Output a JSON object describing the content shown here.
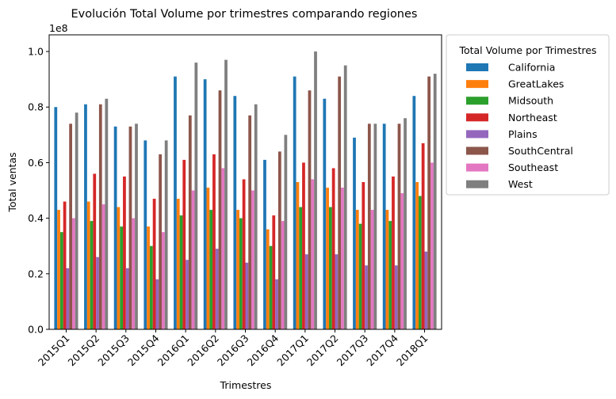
{
  "chart_data": {
    "type": "bar",
    "title": "Evolución Total Volume por trimestres comparando regiones",
    "xlabel": "Trimestres",
    "ylabel": "Total ventas",
    "y_offset_label": "1e8",
    "ylim": [
      0,
      1.06
    ],
    "yticks": [
      "0.0",
      "0.2",
      "0.4",
      "0.6",
      "0.8",
      "1.0"
    ],
    "yunit_multiplier": 100000000,
    "legend_title": "Total Volume por Trimestres",
    "legend_position": "outside-right",
    "grid": false,
    "categories": [
      "2015Q1",
      "2015Q2",
      "2015Q3",
      "2015Q4",
      "2016Q1",
      "2016Q2",
      "2016Q3",
      "2016Q4",
      "2017Q1",
      "2017Q2",
      "2017Q3",
      "2017Q4",
      "2018Q1"
    ],
    "series": [
      {
        "name": "California",
        "color": "#1f77b4",
        "values": [
          0.8,
          0.81,
          0.73,
          0.68,
          0.91,
          0.9,
          0.84,
          0.61,
          0.91,
          0.83,
          0.69,
          0.74,
          0.84
        ]
      },
      {
        "name": "GreatLakes",
        "color": "#ff7f0e",
        "values": [
          0.43,
          0.46,
          0.44,
          0.37,
          0.47,
          0.51,
          0.43,
          0.36,
          0.53,
          0.51,
          0.43,
          0.43,
          0.53
        ]
      },
      {
        "name": "Midsouth",
        "color": "#2ca02c",
        "values": [
          0.35,
          0.39,
          0.37,
          0.3,
          0.41,
          0.43,
          0.4,
          0.3,
          0.44,
          0.44,
          0.38,
          0.39,
          0.48
        ]
      },
      {
        "name": "Northeast",
        "color": "#d62728",
        "values": [
          0.46,
          0.56,
          0.55,
          0.47,
          0.61,
          0.63,
          0.54,
          0.41,
          0.6,
          0.58,
          0.53,
          0.55,
          0.67
        ]
      },
      {
        "name": "Plains",
        "color": "#9467bd",
        "values": [
          0.22,
          0.26,
          0.22,
          0.18,
          0.25,
          0.29,
          0.24,
          0.18,
          0.27,
          0.27,
          0.23,
          0.23,
          0.28
        ]
      },
      {
        "name": "SouthCentral",
        "color": "#8c564b",
        "values": [
          0.74,
          0.81,
          0.73,
          0.63,
          0.77,
          0.86,
          0.77,
          0.64,
          0.86,
          0.91,
          0.74,
          0.74,
          0.91
        ]
      },
      {
        "name": "Southeast",
        "color": "#e377c2",
        "values": [
          0.4,
          0.45,
          0.4,
          0.35,
          0.5,
          0.58,
          0.5,
          0.39,
          0.54,
          0.51,
          0.43,
          0.49,
          0.6
        ]
      },
      {
        "name": "West",
        "color": "#7f7f7f",
        "values": [
          0.78,
          0.83,
          0.74,
          0.68,
          0.96,
          0.97,
          0.81,
          0.7,
          1.0,
          0.95,
          0.74,
          0.76,
          0.92
        ]
      }
    ]
  }
}
